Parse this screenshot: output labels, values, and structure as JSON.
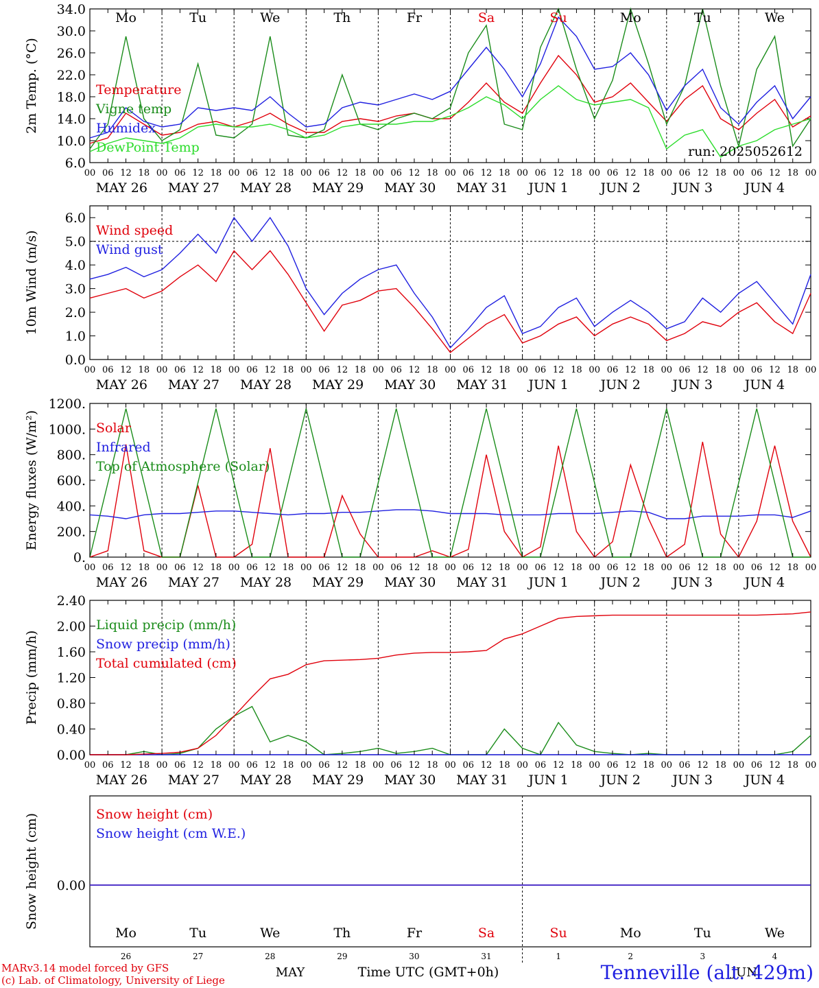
{
  "chart_data": [
    {
      "type": "line",
      "panel": "temperature",
      "ylabel": "2m Temp. (°C)",
      "ylim": [
        6.0,
        34.0
      ],
      "yticks": [
        "6.0",
        "10.0",
        "14.0",
        "18.0",
        "22.0",
        "26.0",
        "30.0",
        "34.0"
      ],
      "x_hours": [
        0,
        6,
        12,
        18,
        24,
        30,
        36,
        42,
        48,
        54,
        60,
        66,
        72,
        78,
        84,
        90,
        96,
        102,
        108,
        114,
        120,
        126,
        132,
        138,
        144,
        150,
        156,
        162,
        168,
        174,
        180,
        186,
        192,
        198,
        204,
        210,
        216,
        222,
        228,
        234,
        240
      ],
      "annotation": "run: 2025052612",
      "series": [
        {
          "name": "Temperature",
          "color": "#e0000b",
          "values": [
            9.5,
            10.5,
            15.0,
            13.0,
            11.0,
            11.5,
            13.0,
            13.5,
            12.5,
            13.5,
            15.0,
            13.0,
            11.5,
            11.5,
            13.5,
            14.0,
            13.5,
            14.5,
            15.0,
            14.0,
            14.0,
            17.0,
            20.5,
            17.0,
            15.0,
            20.5,
            25.5,
            22.0,
            17.0,
            18.0,
            20.5,
            17.0,
            13.5,
            17.5,
            20.0,
            14.0,
            12.0,
            15.0,
            17.5,
            12.5,
            14.5
          ]
        },
        {
          "name": "Vigne temp",
          "color": "#1a8c1a",
          "values": [
            8.5,
            13.0,
            29.0,
            14.0,
            10.0,
            12.0,
            24.0,
            11.0,
            10.5,
            13.0,
            29.0,
            11.0,
            10.5,
            12.0,
            22.0,
            13.0,
            12.0,
            14.0,
            15.0,
            14.0,
            16.0,
            26.0,
            31.0,
            13.0,
            12.0,
            27.0,
            34.0,
            23.0,
            14.0,
            21.0,
            34.0,
            24.0,
            13.0,
            20.0,
            34.0,
            20.0,
            9.0,
            23.0,
            29.0,
            9.0,
            14.0
          ]
        },
        {
          "name": "Humidex",
          "color": "#1f1fe0",
          "values": [
            10.5,
            11.5,
            16.0,
            13.5,
            12.5,
            13.0,
            16.0,
            15.5,
            16.0,
            15.5,
            18.0,
            15.0,
            12.5,
            13.0,
            16.0,
            17.0,
            16.5,
            17.5,
            18.5,
            17.5,
            19.0,
            23.0,
            27.0,
            23.0,
            18.0,
            24.0,
            32.5,
            29.0,
            23.0,
            23.5,
            26.0,
            22.0,
            15.5,
            20.0,
            23.0,
            16.0,
            13.0,
            17.0,
            20.0,
            14.0,
            18.0
          ]
        },
        {
          "name": "DewPoint Temp",
          "color": "#2bdc2b",
          "values": [
            8.0,
            9.5,
            10.5,
            10.0,
            9.5,
            10.5,
            12.5,
            13.0,
            12.5,
            12.5,
            13.0,
            12.0,
            10.5,
            11.0,
            12.5,
            13.0,
            13.0,
            13.0,
            13.5,
            13.5,
            14.5,
            16.0,
            18.0,
            16.5,
            14.0,
            17.5,
            20.0,
            17.5,
            16.5,
            17.0,
            17.5,
            16.0,
            8.5,
            11.0,
            12.0,
            7.0,
            9.0,
            10.0,
            12.0,
            13.0,
            14.0
          ]
        }
      ]
    },
    {
      "type": "line",
      "panel": "wind",
      "ylabel": "10m Wind (m/s)",
      "ylim": [
        0.0,
        6.5
      ],
      "yticks": [
        "0.0",
        "1.0",
        "2.0",
        "3.0",
        "4.0",
        "5.0",
        "6.0"
      ],
      "reference_line": 5.0,
      "x_hours": [
        0,
        6,
        12,
        18,
        24,
        30,
        36,
        42,
        48,
        54,
        60,
        66,
        72,
        78,
        84,
        90,
        96,
        102,
        108,
        114,
        120,
        126,
        132,
        138,
        144,
        150,
        156,
        162,
        168,
        174,
        180,
        186,
        192,
        198,
        204,
        210,
        216,
        222,
        228,
        234,
        240
      ],
      "series": [
        {
          "name": "Wind speed",
          "color": "#e0000b",
          "values": [
            2.6,
            2.8,
            3.0,
            2.6,
            2.9,
            3.5,
            4.0,
            3.3,
            4.6,
            3.8,
            4.6,
            3.6,
            2.4,
            1.2,
            2.3,
            2.5,
            2.9,
            3.0,
            2.2,
            1.3,
            0.3,
            0.9,
            1.5,
            1.9,
            0.7,
            1.0,
            1.5,
            1.8,
            1.0,
            1.5,
            1.8,
            1.5,
            0.8,
            1.1,
            1.6,
            1.4,
            2.0,
            2.4,
            1.6,
            1.1,
            2.8
          ]
        },
        {
          "name": "Wind gust",
          "color": "#1f1fe0",
          "values": [
            3.4,
            3.6,
            3.9,
            3.5,
            3.8,
            4.5,
            5.3,
            4.5,
            6.0,
            5.0,
            6.0,
            4.8,
            3.0,
            1.9,
            2.8,
            3.4,
            3.8,
            4.0,
            2.8,
            1.8,
            0.5,
            1.3,
            2.2,
            2.7,
            1.1,
            1.4,
            2.2,
            2.6,
            1.4,
            2.0,
            2.5,
            2.0,
            1.3,
            1.6,
            2.6,
            2.0,
            2.8,
            3.3,
            2.4,
            1.5,
            3.6
          ]
        }
      ]
    },
    {
      "type": "line",
      "panel": "energy",
      "ylabel": "Energy fluxes (W/m²)",
      "ylim": [
        0,
        1200
      ],
      "yticks": [
        "0.",
        "200.",
        "400.",
        "600.",
        "800.",
        "1000.",
        "1200."
      ],
      "x_hours": [
        0,
        6,
        12,
        18,
        24,
        30,
        36,
        42,
        48,
        54,
        60,
        66,
        72,
        78,
        84,
        90,
        96,
        102,
        108,
        114,
        120,
        126,
        132,
        138,
        144,
        150,
        156,
        162,
        168,
        174,
        180,
        186,
        192,
        198,
        204,
        210,
        216,
        222,
        228,
        234,
        240
      ],
      "series": [
        {
          "name": "Solar",
          "color": "#e0000b",
          "values": [
            0,
            50,
            880,
            50,
            0,
            0,
            560,
            0,
            0,
            100,
            850,
            0,
            0,
            0,
            480,
            180,
            0,
            0,
            0,
            50,
            0,
            60,
            800,
            200,
            0,
            80,
            870,
            200,
            0,
            120,
            720,
            300,
            0,
            100,
            900,
            180,
            0,
            280,
            870,
            280,
            0
          ]
        },
        {
          "name": "Infrared",
          "color": "#1f1fe0",
          "values": [
            330,
            320,
            300,
            330,
            340,
            340,
            350,
            360,
            360,
            350,
            340,
            330,
            340,
            340,
            350,
            350,
            360,
            370,
            370,
            360,
            340,
            340,
            340,
            330,
            330,
            330,
            340,
            340,
            340,
            350,
            360,
            350,
            300,
            300,
            320,
            320,
            320,
            330,
            330,
            310,
            360
          ]
        },
        {
          "name": "Top of Atmosphere (Solar)",
          "color": "#1a8c1a",
          "values": [
            0,
            580,
            1160,
            580,
            0,
            0,
            580,
            1160,
            580,
            0,
            0,
            580,
            1160,
            580,
            0,
            0,
            580,
            1160,
            580,
            0,
            0,
            580,
            1160,
            580,
            0,
            0,
            580,
            1160,
            580,
            0,
            0,
            580,
            1160,
            580,
            0,
            0,
            580,
            1160,
            580,
            0,
            0
          ]
        }
      ]
    },
    {
      "type": "line",
      "panel": "precip",
      "ylabel": "Precip (mm/h)",
      "ylim": [
        0.0,
        2.4
      ],
      "yticks": [
        "0.00",
        "0.40",
        "0.80",
        "1.20",
        "1.60",
        "2.00",
        "2.40"
      ],
      "x_hours": [
        0,
        6,
        12,
        18,
        24,
        30,
        36,
        42,
        48,
        54,
        60,
        66,
        72,
        78,
        84,
        90,
        96,
        102,
        108,
        114,
        120,
        126,
        132,
        138,
        144,
        150,
        156,
        162,
        168,
        174,
        180,
        186,
        192,
        198,
        204,
        210,
        216,
        222,
        228,
        234,
        240
      ],
      "series": [
        {
          "name": "Liquid precip (mm/h)",
          "color": "#1a8c1a",
          "values": [
            0,
            0,
            0,
            0.05,
            0,
            0.02,
            0.1,
            0.4,
            0.6,
            0.75,
            0.2,
            0.3,
            0.2,
            0,
            0.02,
            0.05,
            0.1,
            0.02,
            0.05,
            0.1,
            0,
            0,
            0,
            0.4,
            0.1,
            0,
            0.5,
            0.15,
            0.05,
            0.02,
            0,
            0.02,
            0,
            0,
            0,
            0,
            0,
            0,
            0,
            0.05,
            0.3
          ]
        },
        {
          "name": "Snow precip (mm/h)",
          "color": "#1f1fe0",
          "values": [
            0,
            0,
            0,
            0,
            0,
            0,
            0,
            0,
            0,
            0,
            0,
            0,
            0,
            0,
            0,
            0,
            0,
            0,
            0,
            0,
            0,
            0,
            0,
            0,
            0,
            0,
            0,
            0,
            0,
            0,
            0,
            0,
            0,
            0,
            0,
            0,
            0,
            0,
            0,
            0,
            0
          ]
        },
        {
          "name": "Total cumulated (cm)",
          "color": "#e0000b",
          "values": [
            0,
            0,
            0,
            0.01,
            0.02,
            0.04,
            0.1,
            0.3,
            0.6,
            0.9,
            1.18,
            1.25,
            1.4,
            1.46,
            1.47,
            1.48,
            1.5,
            1.55,
            1.58,
            1.59,
            1.59,
            1.6,
            1.62,
            1.8,
            1.88,
            2.0,
            2.12,
            2.15,
            2.16,
            2.17,
            2.17,
            2.17,
            2.17,
            2.17,
            2.17,
            2.17,
            2.17,
            2.17,
            2.18,
            2.19,
            2.22
          ]
        }
      ]
    },
    {
      "type": "line",
      "panel": "snow",
      "ylabel": "Snow height (cm)",
      "yticks": [
        "0.00"
      ],
      "x_hours": [
        0,
        240
      ],
      "series": [
        {
          "name": "Snow height (cm)",
          "color": "#e0000b",
          "values": [
            0,
            0
          ]
        },
        {
          "name": "Snow height (cm W.E.)",
          "color": "#1f1fe0",
          "values": [
            0,
            0
          ]
        }
      ]
    }
  ],
  "x_tick_labels": [
    "00",
    "06",
    "12",
    "18"
  ],
  "x_tick_last": "00",
  "date_labels": [
    "MAY 26",
    "MAY 27",
    "MAY 28",
    "MAY 29",
    "MAY 30",
    "MAY 31",
    "JUN  1",
    "JUN  2",
    "JUN  3",
    "JUN  4"
  ],
  "weekdays": [
    {
      "label": "Mo",
      "color": "#000000"
    },
    {
      "label": "Tu",
      "color": "#000000"
    },
    {
      "label": "We",
      "color": "#000000"
    },
    {
      "label": "Th",
      "color": "#000000"
    },
    {
      "label": "Fr",
      "color": "#000000"
    },
    {
      "label": "Sa",
      "color": "#e0000b"
    },
    {
      "label": "Su",
      "color": "#e0000b"
    },
    {
      "label": "Mo",
      "color": "#000000"
    },
    {
      "label": "Tu",
      "color": "#000000"
    },
    {
      "label": "We",
      "color": "#000000"
    }
  ],
  "bottom_axis": {
    "day_numbers": [
      "26",
      "27",
      "28",
      "29",
      "30",
      "31",
      "1",
      "2",
      "3",
      "4"
    ],
    "month_left": "MAY",
    "month_right": "JUN",
    "xlabel": "Time UTC (GMT+0h)"
  },
  "footer": {
    "credit_line1": "MARv3.14 model forced by GFS",
    "credit_line2": "(c) Lab. of Climatology, University of Liege",
    "station": "Tenneville (alt. 429m)"
  }
}
